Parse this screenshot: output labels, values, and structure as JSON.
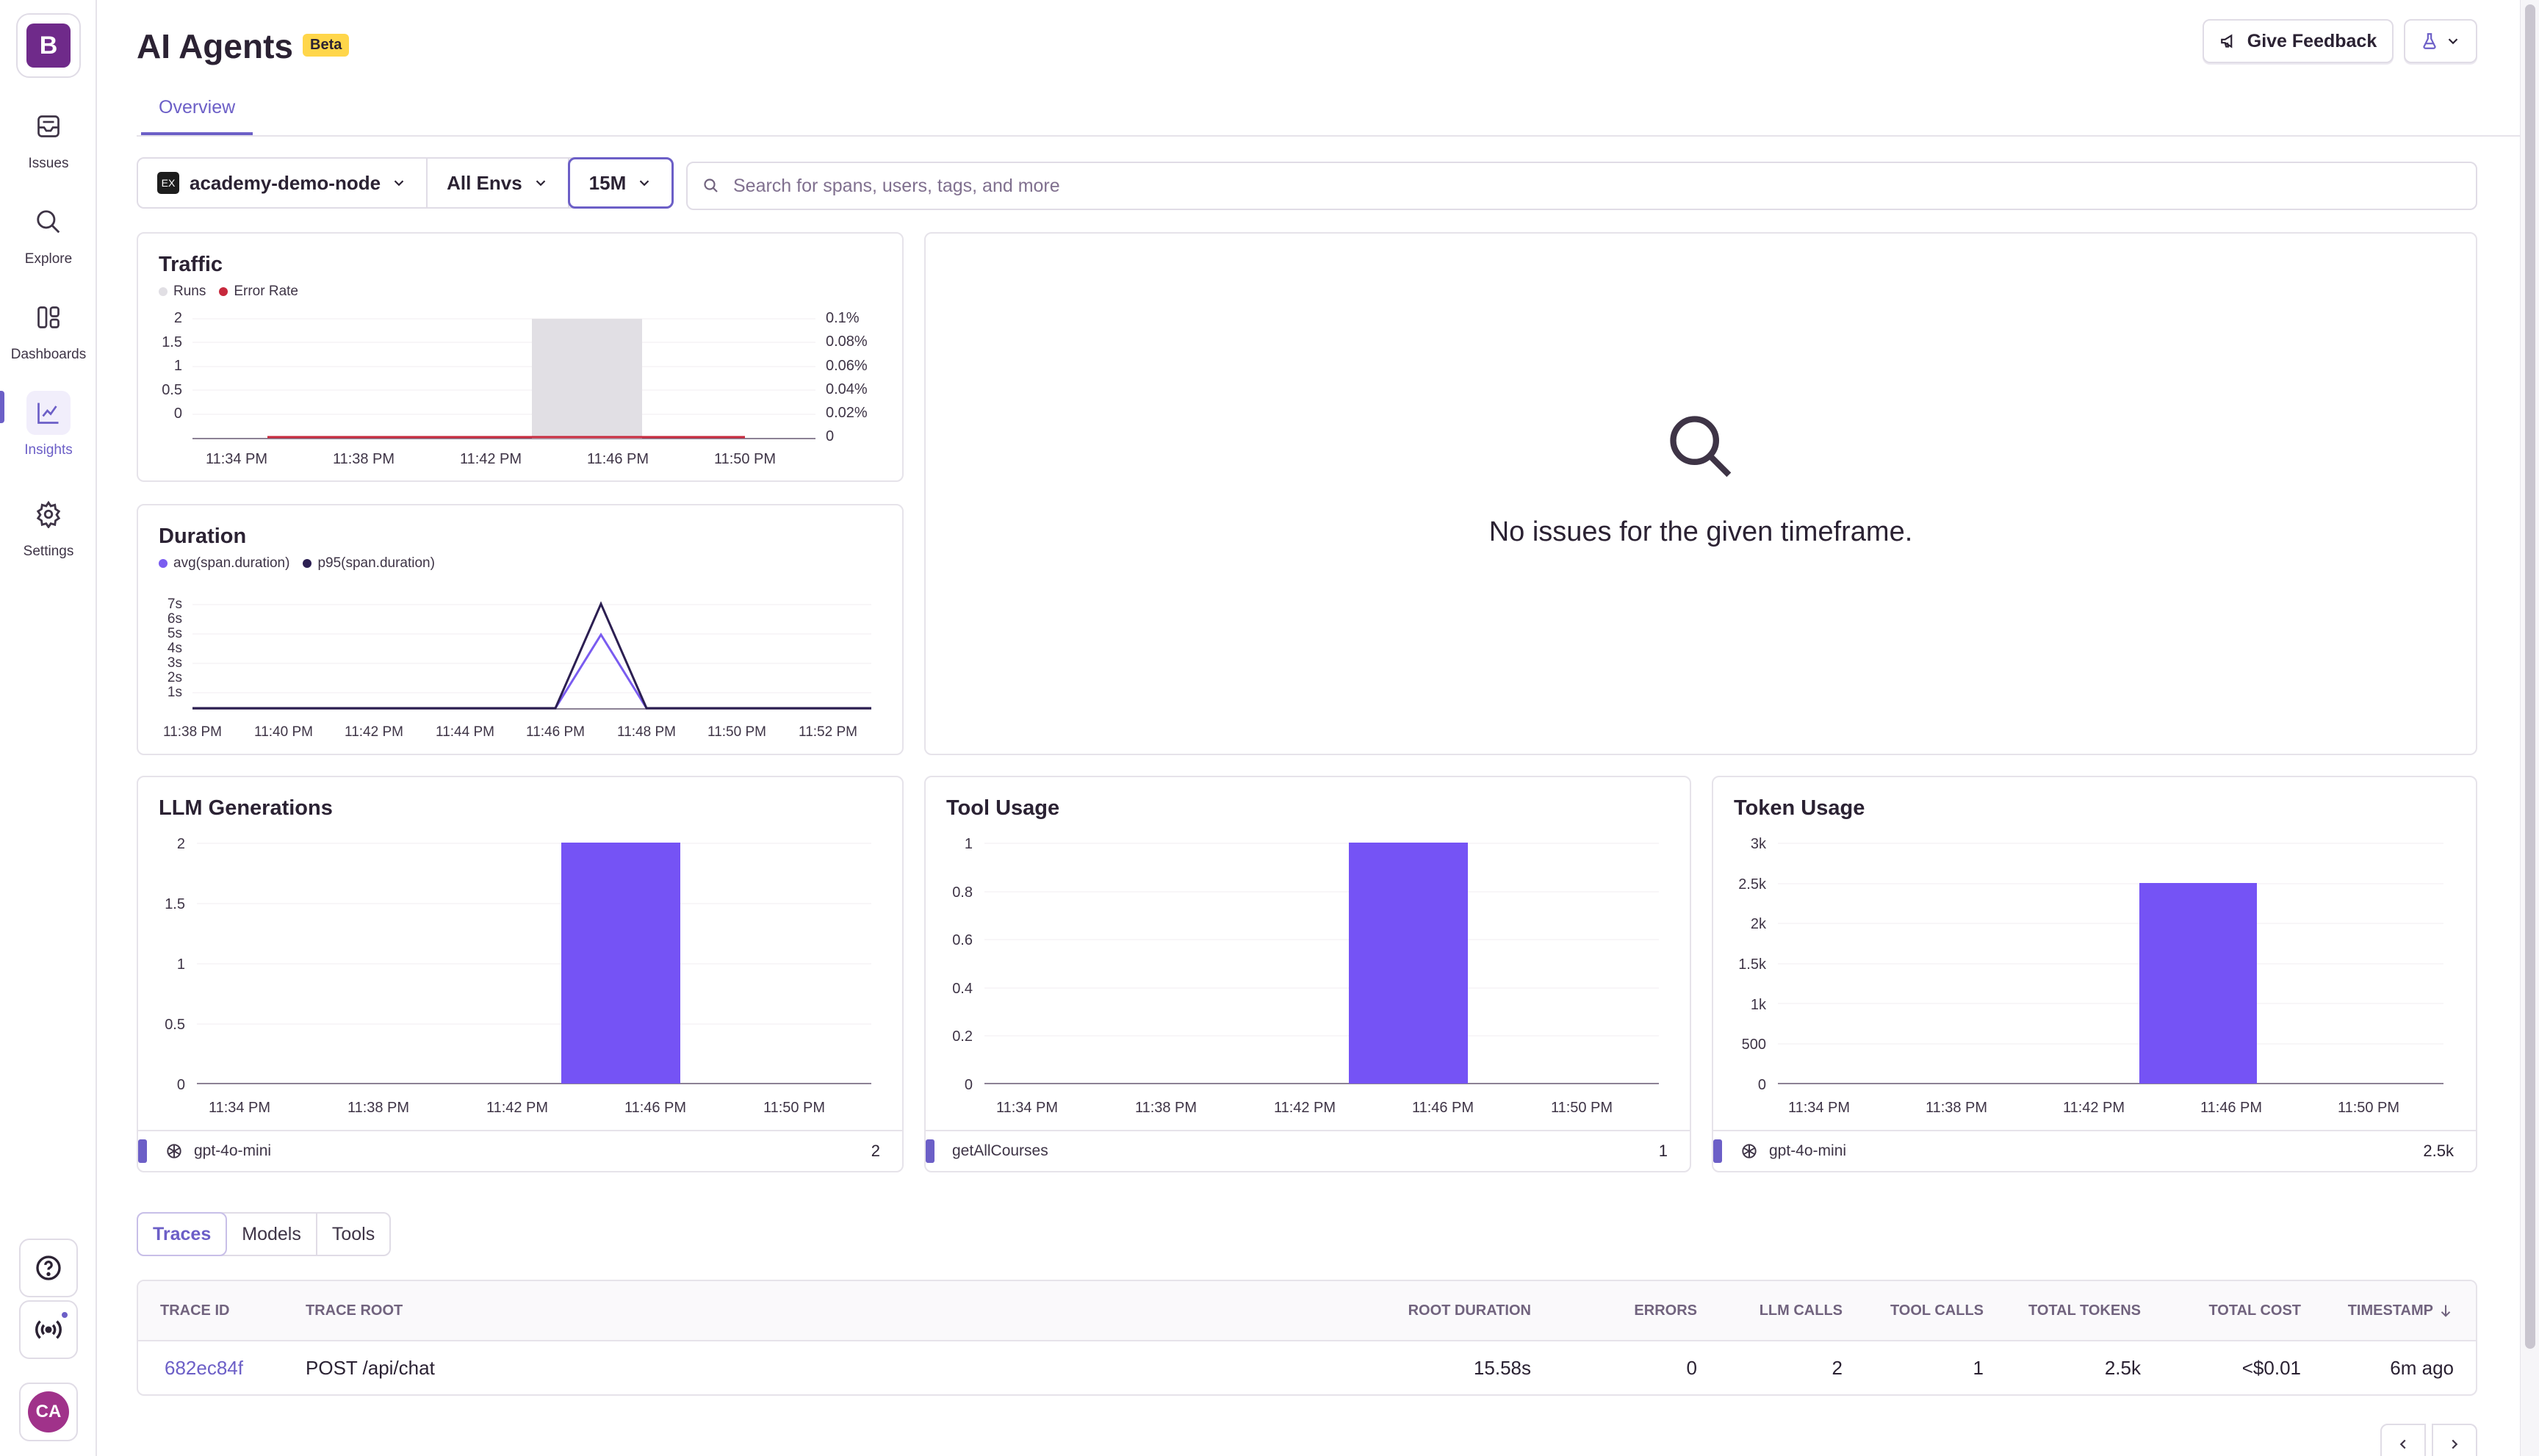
{
  "sidebar": {
    "org_initial": "B",
    "items": [
      {
        "label": "Issues",
        "icon": "issues-icon"
      },
      {
        "label": "Explore",
        "icon": "search-icon"
      },
      {
        "label": "Dashboards",
        "icon": "dashboards-icon"
      },
      {
        "label": "Insights",
        "icon": "insights-icon",
        "active": true
      },
      {
        "label": "Settings",
        "icon": "gear-icon"
      }
    ],
    "avatar_initials": "CA"
  },
  "header": {
    "title": "AI Agents",
    "badge": "Beta",
    "feedback_label": "Give Feedback",
    "tabs": [
      {
        "label": "Overview",
        "active": true
      }
    ]
  },
  "filters": {
    "project": "academy-demo-node",
    "project_icon_text": "EX",
    "environment": "All Envs",
    "period": "15M",
    "search_placeholder": "Search for spans, users, tags, and more"
  },
  "traffic": {
    "title": "Traffic",
    "legend": [
      "Runs",
      "Error Rate"
    ],
    "y_left": [
      "2",
      "1.5",
      "1",
      "0.5",
      "0"
    ],
    "y_right": [
      "0.1%",
      "0.08%",
      "0.06%",
      "0.04%",
      "0.02%",
      "0"
    ],
    "x_ticks": [
      "11:34 PM",
      "11:38 PM",
      "11:42 PM",
      "11:46 PM",
      "11:50 PM"
    ]
  },
  "duration": {
    "title": "Duration",
    "legend": [
      "avg(span.duration)",
      "p95(span.duration)"
    ],
    "y_ticks": [
      "7s",
      "6s",
      "5s",
      "4s",
      "3s",
      "2s",
      "1s"
    ],
    "x_ticks": [
      "11:38 PM",
      "11:40 PM",
      "11:42 PM",
      "11:44 PM",
      "11:46 PM",
      "11:48 PM",
      "11:50 PM",
      "11:52 PM"
    ]
  },
  "issues_panel": {
    "empty_message": "No issues for the given timeframe."
  },
  "llm_generations": {
    "title": "LLM Generations",
    "y_ticks": [
      "2",
      "1.5",
      "1",
      "0.5",
      "0"
    ],
    "x_ticks": [
      "11:34 PM",
      "11:38 PM",
      "11:42 PM",
      "11:46 PM",
      "11:50 PM"
    ],
    "footer_name": "gpt-4o-mini",
    "footer_value": "2"
  },
  "tool_usage": {
    "title": "Tool Usage",
    "y_ticks": [
      "1",
      "0.8",
      "0.6",
      "0.4",
      "0.2",
      "0"
    ],
    "x_ticks": [
      "11:34 PM",
      "11:38 PM",
      "11:42 PM",
      "11:46 PM",
      "11:50 PM"
    ],
    "footer_name": "getAllCourses",
    "footer_value": "1"
  },
  "token_usage": {
    "title": "Token Usage",
    "y_ticks": [
      "3k",
      "2.5k",
      "2k",
      "1.5k",
      "1k",
      "500",
      "0"
    ],
    "x_ticks": [
      "11:34 PM",
      "11:38 PM",
      "11:42 PM",
      "11:46 PM",
      "11:50 PM"
    ],
    "footer_name": "gpt-4o-mini",
    "footer_value": "2.5k"
  },
  "chart_data": [
    {
      "type": "bar",
      "title": "Traffic",
      "series": [
        {
          "name": "Runs",
          "x": [
            "11:45 PM"
          ],
          "values": [
            2
          ]
        },
        {
          "name": "Error Rate",
          "values": [
            0
          ]
        }
      ],
      "ylim": [
        0,
        2
      ],
      "y2lim": [
        "0",
        "0.1%"
      ]
    },
    {
      "type": "line",
      "title": "Duration",
      "series": [
        {
          "name": "avg(span.duration)",
          "peak_at": "11:47 PM",
          "peak_s": 5
        },
        {
          "name": "p95(span.duration)",
          "peak_at": "11:47 PM",
          "peak_s": 7
        }
      ]
    },
    {
      "type": "bar",
      "title": "LLM Generations",
      "x": [
        "11:45 PM"
      ],
      "values": [
        2
      ],
      "ylim": [
        0,
        2
      ]
    },
    {
      "type": "bar",
      "title": "Tool Usage",
      "x": [
        "11:45 PM"
      ],
      "values": [
        1
      ],
      "ylim": [
        0,
        1
      ]
    },
    {
      "type": "bar",
      "title": "Token Usage",
      "x": [
        "11:45 PM"
      ],
      "values": [
        2500
      ],
      "ylim": [
        0,
        3000
      ]
    }
  ],
  "table": {
    "tabs": [
      "Traces",
      "Models",
      "Tools"
    ],
    "columns": [
      "TRACE ID",
      "TRACE ROOT",
      "ROOT DURATION",
      "ERRORS",
      "LLM CALLS",
      "TOOL CALLS",
      "TOTAL TOKENS",
      "TOTAL COST",
      "TIMESTAMP"
    ],
    "rows": [
      {
        "trace_id": "682ec84f",
        "trace_root": "POST /api/chat",
        "root_duration": "15.58s",
        "errors": "0",
        "llm_calls": "2",
        "tool_calls": "1",
        "total_tokens": "2.5k",
        "total_cost": "<$0.01",
        "timestamp": "6m ago"
      }
    ]
  },
  "colors": {
    "accent": "#6c5fc7",
    "bar": "#7553f5",
    "error": "#c7283c",
    "runs": "#e1dfe4",
    "p95": "#2c1f52",
    "avg": "#7a5cf0"
  }
}
